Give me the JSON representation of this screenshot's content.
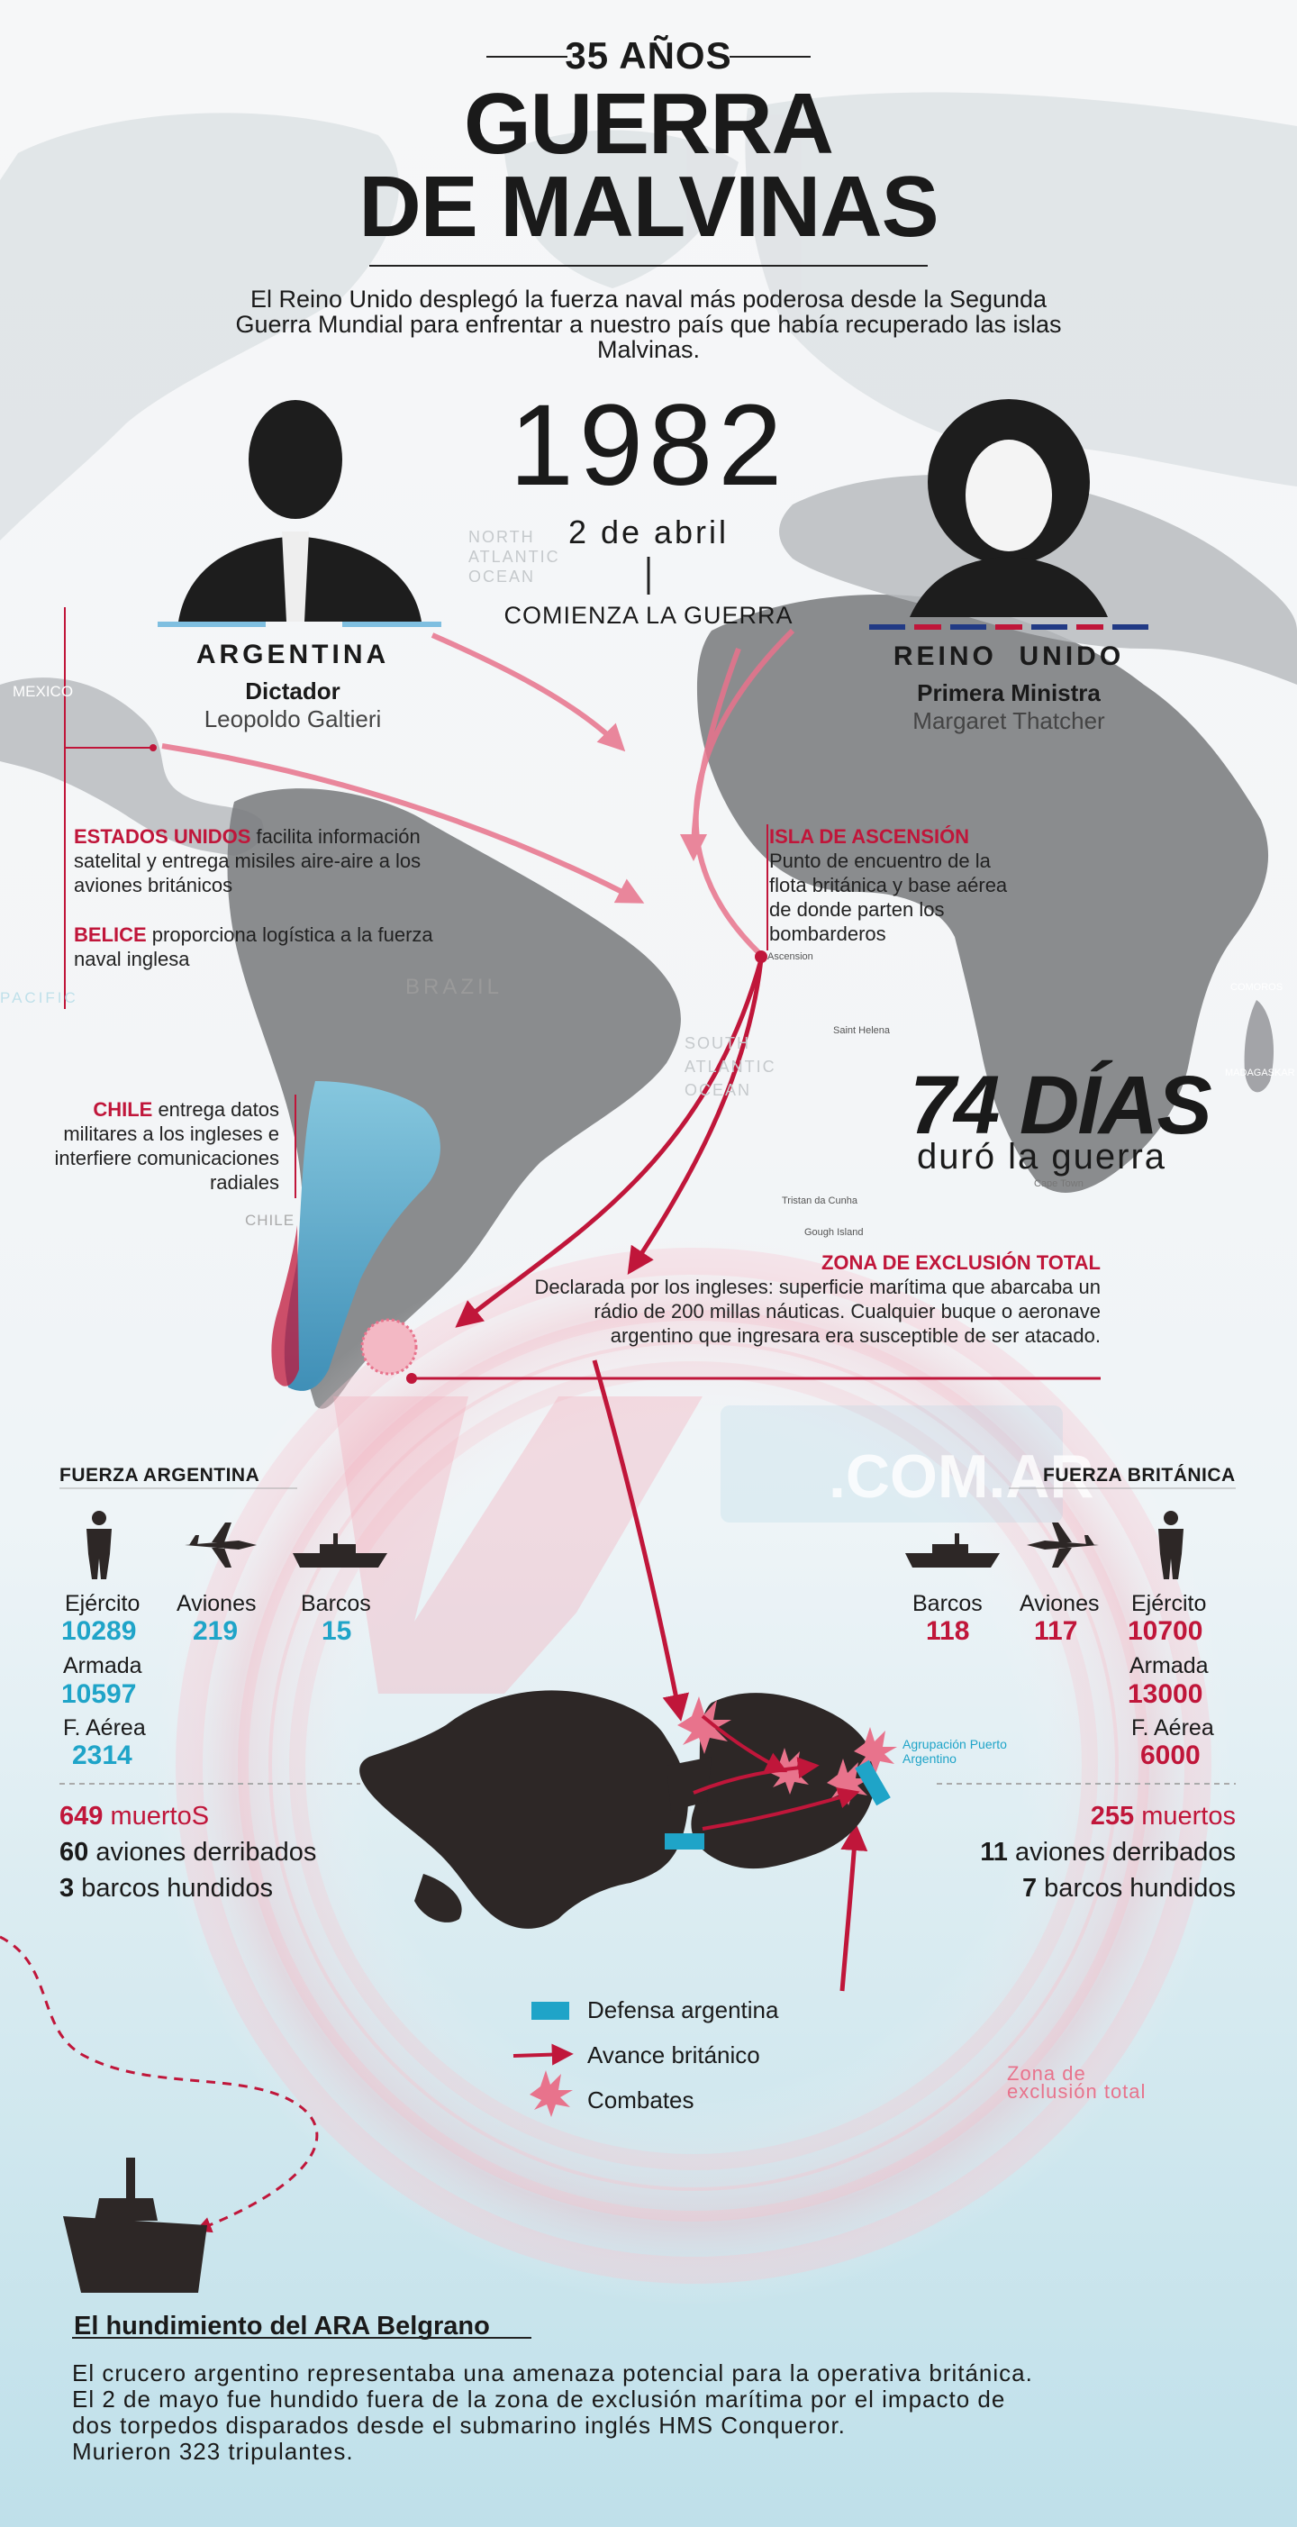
{
  "header": {
    "anniversary": "35 AÑOS",
    "title_line1": "GUERRA",
    "title_line2": "DE MALVINAS",
    "subtitle": "El Reino Unido desplegó la fuerza naval más poderosa desde la Segunda Guerra Mundial para enfrentar a nuestro país que había recuperado las islas Malvinas."
  },
  "start": {
    "year": "1982",
    "date": "2 de abril",
    "label": "COMIENZA LA GUERRA"
  },
  "argentina": {
    "country": "ARGENTINA",
    "role": "Dictador",
    "name": "Leopoldo Galtieri"
  },
  "uk": {
    "country": "REINO  UNIDO",
    "role": "Primera Ministra",
    "name": "Margaret Thatcher"
  },
  "notes": {
    "eeuu_name": "ESTADOS UNIDOS",
    "eeuu_text": " facilita información satelital y entrega misiles aire-aire a los aviones británicos",
    "belice_name": "BELICE",
    "belice_text": " proporciona logística a la fuerza naval inglesa",
    "chile_name": "CHILE",
    "chile_text": " entrega datos militares a los ingleses e interfiere comunicaciones radiales",
    "ascension_title": "ISLA DE ASCENSIÓN",
    "ascension_text": "Punto de encuentro de la flota británica y base aérea de donde parten los bombarderos",
    "zona_title": "ZONA DE EXCLUSIÓN TOTAL",
    "zona_text": "Declarada por los ingleses: superficie marítima que abarcaba un rádio de 200 millas náuticas. Cualquier buque o aeronave argentino que ingresara era susceptible de ser atacado."
  },
  "duration": {
    "days": "74 DÍAS",
    "label": "duró la guerra"
  },
  "map_labels": {
    "mexico": "MEXICO",
    "brazil": "BRAZIL",
    "pacific": "PACIFIC",
    "chile": "CHILE",
    "north_atlantic": "NORTH ATLANTIC OCEAN",
    "south_atlantic": "SOUTH ATLANTIC OCEAN",
    "ascension": "Ascension",
    "saint_helena": "Saint Helena",
    "tristan": "Tristan da Cunha",
    "gough": "Gough Island",
    "madagascar": "MADAGASKAR",
    "comoros": "COMOROS",
    "cape_town": "Cape Town",
    "watermark": ".COM.AR"
  },
  "fuerza_argentina": {
    "title": "FUERZA ARGENTINA",
    "ejercito_label": "Ejército",
    "ejercito": "10289",
    "aviones_label": "Aviones",
    "aviones": "219",
    "barcos_label": "Barcos",
    "barcos": "15",
    "armada_label": "Armada",
    "armada": "10597",
    "faerea_label": "F. Aérea",
    "faerea": "2314",
    "muertos_num": "649",
    "muertos_label": " muertoS",
    "aviones_derribados_num": "60",
    "aviones_derribados_label": " aviones derribados",
    "barcos_hundidos_num": "3",
    "barcos_hundidos_label": " barcos hundidos"
  },
  "fuerza_britanica": {
    "title": "FUERZA BRITÁNICA",
    "barcos_label": "Barcos",
    "barcos": "118",
    "aviones_label": "Aviones",
    "aviones": "117",
    "ejercito_label": "Ejército",
    "ejercito": "10700",
    "armada_label": "Armada",
    "armada": "13000",
    "faerea_label": "F. Aérea",
    "faerea": "6000",
    "muertos_num": "255",
    "muertos_label": " muertos",
    "aviones_derribados_num": "11",
    "aviones_derribados_label": " aviones derribados",
    "barcos_hundidos_num": "7",
    "barcos_hundidos_label": " barcos hundidos"
  },
  "islands": {
    "puerto_label": "Agrupación Puerto Argentino"
  },
  "legend": {
    "defensa": "Defensa argentina",
    "avance": "Avance británico",
    "combates": "Combates",
    "zona": "Zona de exclusión total"
  },
  "belgrano": {
    "title": "El hundimiento del ARA Belgrano",
    "line1": "El crucero argentino representaba una amenaza potencial para la operativa británica.",
    "line2": "El 2 de mayo fue hundido fuera de la zona de exclusión marítima por el impacto de",
    "line3": "dos torpedos disparados desde el submarino inglés HMS Conqueror.",
    "line4": "Murieron 323 tripulantes."
  },
  "colors": {
    "accent_red": "#c0163a",
    "accent_blue": "#1fa4c8",
    "land": "#6e6e6e",
    "islands": "#2d2726"
  }
}
